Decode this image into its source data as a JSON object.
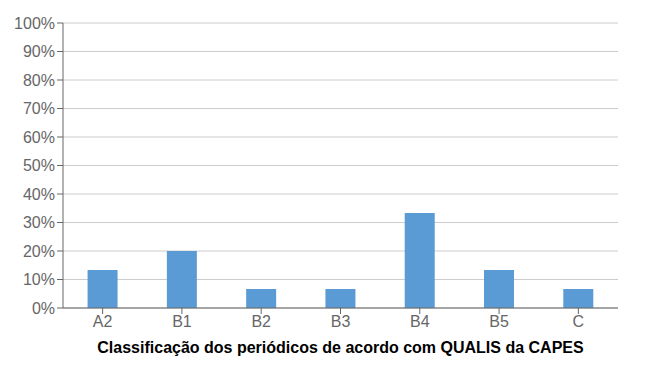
{
  "chart_data": {
    "type": "bar",
    "categories": [
      "A2",
      "B1",
      "B2",
      "B3",
      "B4",
      "B5",
      "C"
    ],
    "values": [
      13.33,
      20.0,
      6.67,
      6.67,
      33.33,
      13.33,
      6.67
    ],
    "color": "#5B9BD5",
    "xlabel": "Classificação dos periódicos de acordo com QUALIS da CAPES",
    "ylim": [
      0,
      100
    ],
    "yticks": [
      {
        "value": 0,
        "label": "0%"
      },
      {
        "value": 10,
        "label": "10%"
      },
      {
        "value": 20,
        "label": "20%"
      },
      {
        "value": 30,
        "label": "30%"
      },
      {
        "value": 40,
        "label": "40%"
      },
      {
        "value": 50,
        "label": "50%"
      },
      {
        "value": 60,
        "label": "60%"
      },
      {
        "value": 70,
        "label": "70%"
      },
      {
        "value": 80,
        "label": "80%"
      },
      {
        "value": 90,
        "label": "90%"
      },
      {
        "value": 100,
        "label": "100%"
      }
    ],
    "grid": true
  }
}
